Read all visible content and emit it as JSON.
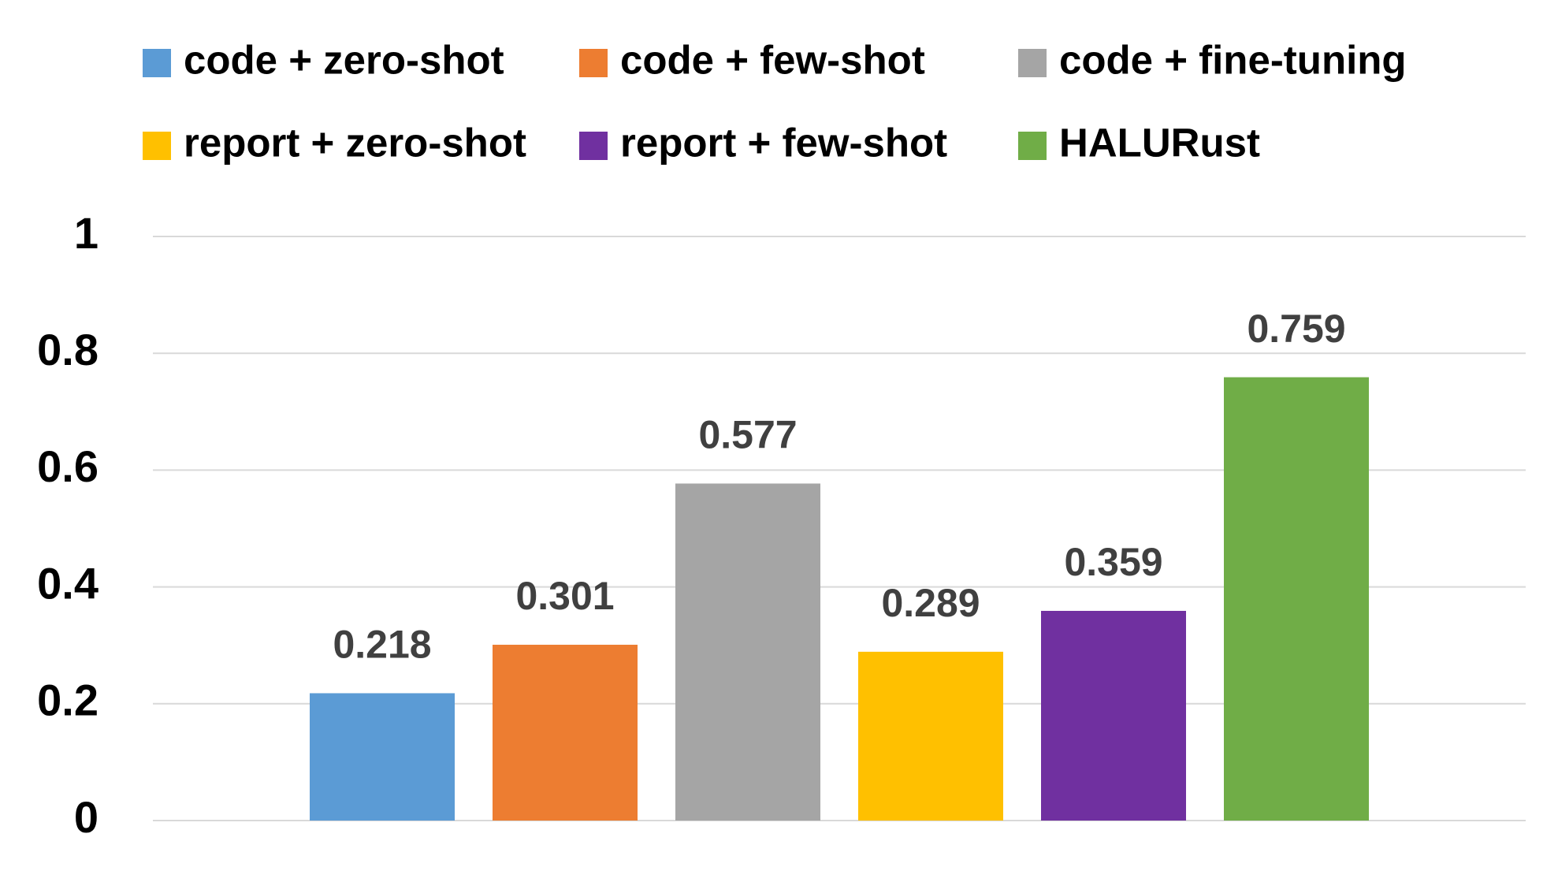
{
  "chart_data": {
    "type": "bar",
    "categories": [
      null
    ],
    "series": [
      {
        "name": "code + zero-shot",
        "color": "#5b9bd5",
        "values": [
          0.218
        ]
      },
      {
        "name": "code + few-shot",
        "color": "#ed7d31",
        "values": [
          0.301
        ]
      },
      {
        "name": "code + fine-tuning",
        "color": "#a5a5a5",
        "values": [
          0.577
        ]
      },
      {
        "name": "report + zero-shot",
        "color": "#ffc000",
        "values": [
          0.289
        ]
      },
      {
        "name": "report + few-shot",
        "color": "#7030a0",
        "values": [
          0.359
        ]
      },
      {
        "name": "HALURust",
        "color": "#70ad47",
        "values": [
          0.759
        ]
      }
    ],
    "ylim": [
      0,
      1
    ],
    "yticks": [
      0,
      0.2,
      0.4,
      0.6,
      0.8,
      1
    ],
    "grid": true,
    "legend": "top"
  }
}
